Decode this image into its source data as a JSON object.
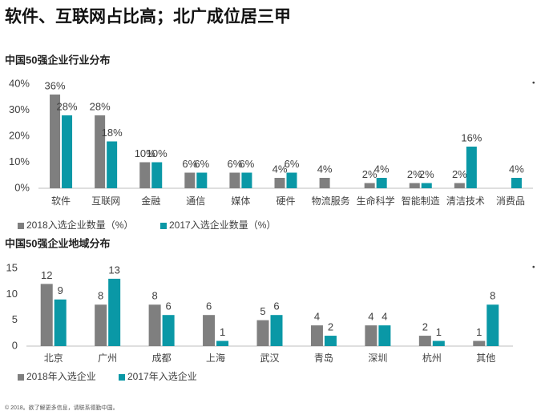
{
  "title": "软件、互联网占比高；北广成位居三甲",
  "footer": "© 2018。欲了解更多信息，请联系德勤中国。",
  "chart_data": [
    {
      "type": "bar",
      "title": "中国50强企业行业分布",
      "categories": [
        "软件",
        "互联网",
        "金融",
        "通信",
        "媒体",
        "硬件",
        "物流服务",
        "生命科学",
        "智能制造",
        "清洁技术",
        "消费品"
      ],
      "series": [
        {
          "name": "2018入选企业数量（%）",
          "color": "#7f7f7f",
          "values": [
            36,
            28,
            10,
            6,
            6,
            4,
            4,
            2,
            2,
            2,
            null
          ],
          "value_labels": [
            "36%",
            "28%",
            "10%",
            "6%",
            "6%",
            "4%",
            "4%",
            "2%",
            "2%",
            "2%",
            null
          ]
        },
        {
          "name": "2017入选企业数量（%）",
          "color": "#0a98a6",
          "values": [
            28,
            18,
            10,
            6,
            6,
            6,
            null,
            4,
            2,
            16,
            4
          ],
          "value_labels": [
            "28%",
            "18%",
            "10%",
            "6%",
            "6%",
            "6%",
            null,
            "4%",
            "2%",
            "16%",
            "4%"
          ]
        }
      ],
      "ylim": [
        0,
        40
      ],
      "yticks": [
        {
          "value": 0,
          "label": "0%"
        },
        {
          "value": 10,
          "label": "10%"
        },
        {
          "value": 20,
          "label": "20%"
        },
        {
          "value": 30,
          "label": "30%"
        },
        {
          "value": 40,
          "label": "40%"
        }
      ],
      "legend": "bottom-left"
    },
    {
      "type": "bar",
      "title": "中国50强企业地域分布",
      "categories": [
        "北京",
        "广州",
        "成都",
        "上海",
        "武汉",
        "青岛",
        "深圳",
        "杭州",
        "其他"
      ],
      "series": [
        {
          "name": "2018年入选企业",
          "color": "#7f7f7f",
          "values": [
            12,
            8,
            8,
            6,
            5,
            4,
            4,
            2,
            1
          ]
        },
        {
          "name": "2017年入选企业",
          "color": "#0a98a6",
          "values": [
            9,
            13,
            6,
            1,
            6,
            2,
            4,
            1,
            8
          ]
        }
      ],
      "ylim": [
        0,
        15
      ],
      "yticks": [
        0,
        5,
        10,
        15
      ],
      "legend": "bottom-left"
    }
  ]
}
